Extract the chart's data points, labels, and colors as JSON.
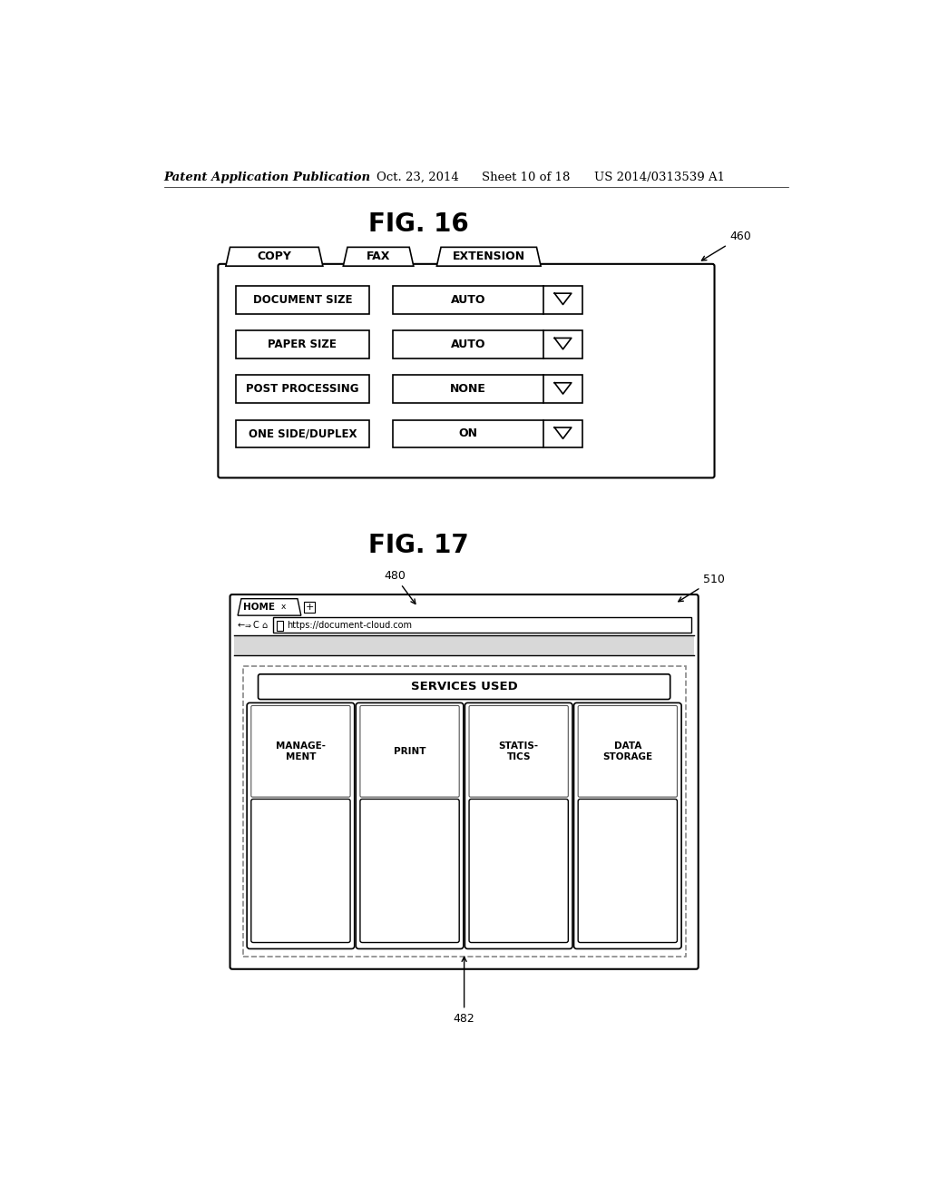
{
  "background_color": "#ffffff",
  "header_text": "Patent Application Publication",
  "header_date": "Oct. 23, 2014",
  "header_sheet": "Sheet 10 of 18",
  "header_patent": "US 2014/0313539 A1",
  "fig16_title": "FIG. 16",
  "fig16_label": "460",
  "fig16_tabs": [
    "COPY",
    "FAX",
    "EXTENSION"
  ],
  "fig16_rows": [
    {
      "label": "DOCUMENT SIZE",
      "value": "AUTO"
    },
    {
      "label": "PAPER SIZE",
      "value": "AUTO"
    },
    {
      "label": "POST PROCESSING",
      "value": "NONE"
    },
    {
      "label": "ONE SIDE/DUPLEX",
      "value": "ON"
    }
  ],
  "fig17_title": "FIG. 17",
  "fig17_label_480": "480",
  "fig17_label_510": "510",
  "fig17_label_482": "482",
  "fig17_url": "https://document-cloud.com",
  "fig17_tab": "HOME",
  "fig17_services_label": "SERVICES USED",
  "fig17_service_boxes": [
    "MANAGE-\nMENT",
    "PRINT",
    "STATIS-\nTICS",
    "DATA\nSTORAGE"
  ]
}
